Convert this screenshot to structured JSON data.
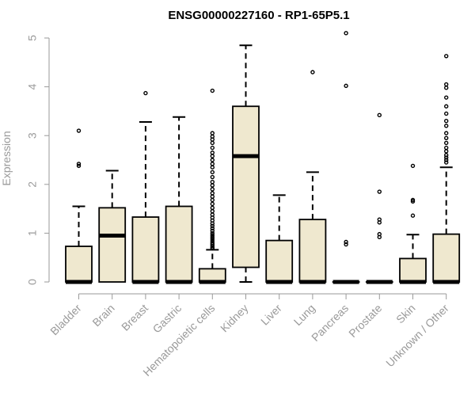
{
  "chart_data": {
    "type": "boxplot",
    "title": "ENSG00000227160 - RP1-65P5.1",
    "xlabel": "",
    "ylabel": "Expression",
    "ylim": [
      0,
      5.2
    ],
    "yticks": [
      0,
      1,
      2,
      3,
      4,
      5
    ],
    "colors": {
      "box_fill": "#efe8cf",
      "box_stroke": "#000000",
      "axis": "#9a9a9a"
    },
    "categories": [
      "Bladder",
      "Brain",
      "Breast",
      "Gastric",
      "Hematopoietic cells",
      "Kidney",
      "Liver",
      "Lung",
      "Pancreas",
      "Prostate",
      "Skin",
      "Unknown / Other"
    ],
    "boxes": [
      {
        "name": "Bladder",
        "q1": 0,
        "median": 0,
        "q3": 0.73,
        "whisker_low": 0,
        "whisker_high": 1.55,
        "outliers": [
          3.1,
          2.42,
          2.38
        ]
      },
      {
        "name": "Brain",
        "q1": 0,
        "median": 0.95,
        "q3": 1.52,
        "whisker_low": 0,
        "whisker_high": 2.28,
        "outliers": []
      },
      {
        "name": "Breast",
        "q1": 0,
        "median": 0,
        "q3": 1.33,
        "whisker_low": 0,
        "whisker_high": 3.28,
        "outliers": [
          3.87
        ]
      },
      {
        "name": "Gastric",
        "q1": 0,
        "median": 0,
        "q3": 1.55,
        "whisker_low": 0,
        "whisker_high": 3.38,
        "outliers": []
      },
      {
        "name": "Hematopoietic cells",
        "q1": 0,
        "median": 0,
        "q3": 0.27,
        "whisker_low": 0,
        "whisker_high": 0.66,
        "outliers": [
          3.92,
          3.05,
          2.98,
          2.92,
          2.85,
          2.75,
          2.65,
          2.58,
          2.5,
          2.42,
          2.35,
          2.25,
          2.15,
          2.05,
          1.98,
          1.9,
          1.82,
          1.75,
          1.68,
          1.6,
          1.52,
          1.45,
          1.38,
          1.32,
          1.26,
          1.2,
          1.15,
          1.1,
          1.05,
          1.0,
          0.96,
          0.92,
          0.88,
          0.84,
          0.8,
          0.77,
          0.74,
          0.71,
          0.69
        ]
      },
      {
        "name": "Kidney",
        "q1": 0.3,
        "median": 2.58,
        "q3": 3.6,
        "whisker_low": 0,
        "whisker_high": 4.85,
        "outliers": []
      },
      {
        "name": "Liver",
        "q1": 0,
        "median": 0,
        "q3": 0.85,
        "whisker_low": 0,
        "whisker_high": 1.78,
        "outliers": []
      },
      {
        "name": "Lung",
        "q1": 0,
        "median": 0,
        "q3": 1.28,
        "whisker_low": 0,
        "whisker_high": 2.25,
        "outliers": [
          4.3
        ]
      },
      {
        "name": "Pancreas",
        "q1": 0,
        "median": 0,
        "q3": 0,
        "whisker_low": 0,
        "whisker_high": 0,
        "outliers": [
          5.1,
          4.02,
          0.82,
          0.77
        ]
      },
      {
        "name": "Prostate",
        "q1": 0,
        "median": 0,
        "q3": 0,
        "whisker_low": 0,
        "whisker_high": 0,
        "outliers": [
          3.42,
          1.85,
          1.28,
          1.22,
          0.98,
          0.92
        ]
      },
      {
        "name": "Skin",
        "q1": 0,
        "median": 0,
        "q3": 0.48,
        "whisker_low": 0,
        "whisker_high": 0.97,
        "outliers": [
          2.38,
          1.68,
          1.65,
          1.36
        ]
      },
      {
        "name": "Unknown / Other",
        "q1": 0,
        "median": 0,
        "q3": 0.98,
        "whisker_low": 0,
        "whisker_high": 2.35,
        "outliers": [
          4.63,
          4.05,
          3.98,
          3.78,
          3.6,
          3.45,
          3.3,
          3.2,
          3.05,
          2.95,
          2.85,
          2.75,
          2.68,
          2.6,
          2.55,
          2.5,
          2.45
        ]
      }
    ]
  }
}
